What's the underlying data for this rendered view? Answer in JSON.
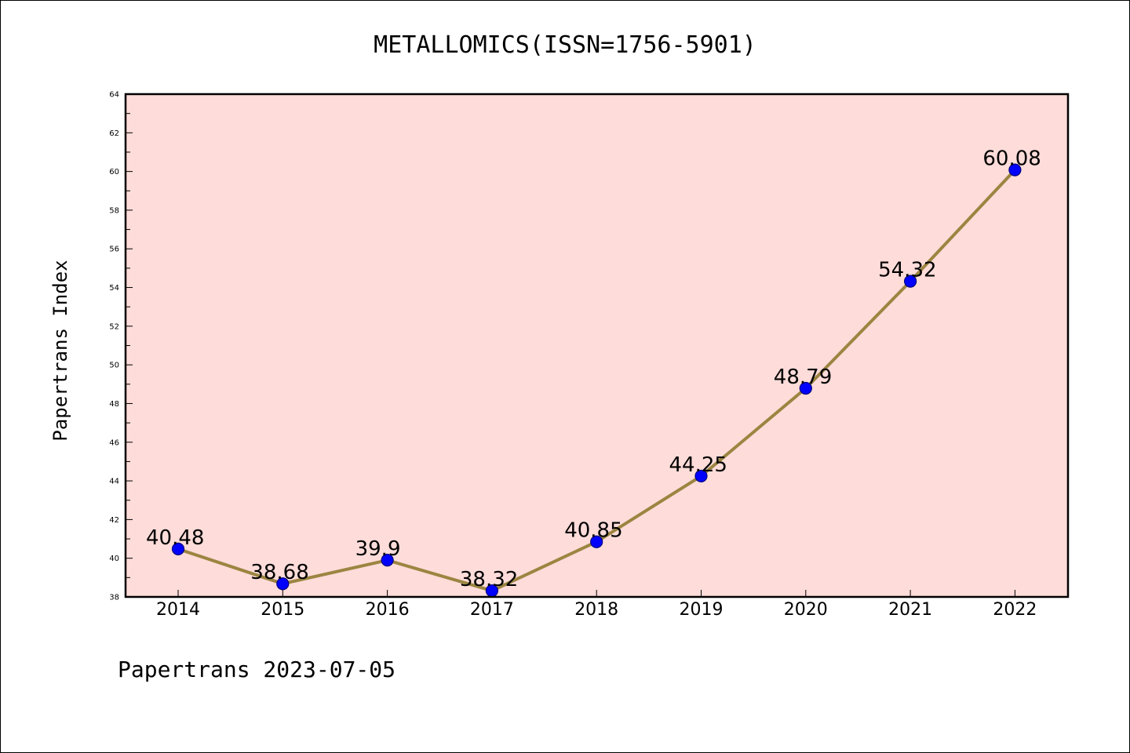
{
  "chart_data": {
    "type": "line",
    "title": "METALLOMICS(ISSN=1756-5901)",
    "xlabel": "",
    "ylabel": "Papertrans Index",
    "categories": [
      "2014",
      "2015",
      "2016",
      "2017",
      "2018",
      "2019",
      "2020",
      "2021",
      "2022"
    ],
    "series": [
      {
        "values": [
          40.48,
          38.68,
          39.9,
          38.32,
          40.85,
          44.25,
          48.79,
          54.32,
          60.08
        ],
        "labels": [
          "40.48",
          "38.68",
          "39.9",
          "38.32",
          "40.85",
          "44.25",
          "48.79",
          "54.32",
          "60.08"
        ]
      }
    ],
    "ylim": [
      38,
      64
    ],
    "yticks": [
      "38",
      "40",
      "42",
      "44",
      "46",
      "48",
      "50",
      "52",
      "54",
      "56",
      "58",
      "60",
      "62",
      "64"
    ],
    "grid": false,
    "colors": {
      "plot_background": "#fddcd9",
      "line": "#9b8541",
      "marker": "#0000ff",
      "marker_edge": "#000080"
    }
  },
  "footer": "Papertrans 2023-07-05"
}
